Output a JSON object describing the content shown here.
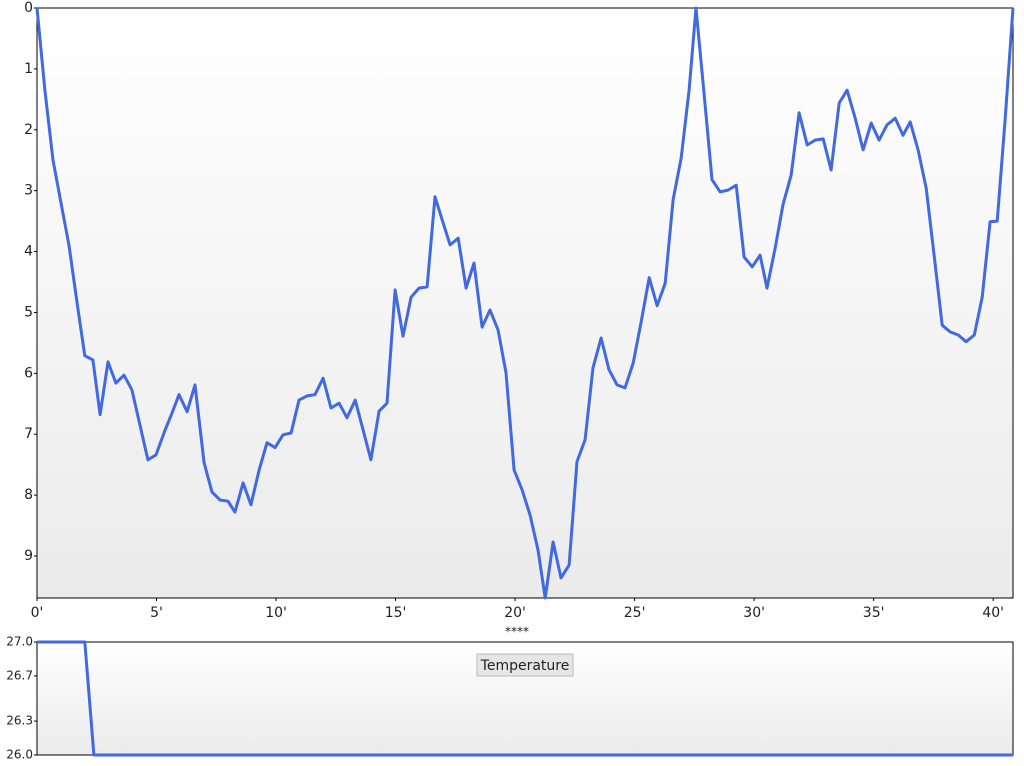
{
  "chart_data": [
    {
      "type": "line",
      "y_inverted": true,
      "grid": false,
      "x": [
        0,
        0.33,
        0.67,
        1.34,
        1.72,
        2.0,
        2.34,
        2.64,
        2.97,
        3.3,
        3.64,
        3.97,
        4.64,
        4.98,
        5.36,
        5.65,
        5.94,
        6.28,
        6.61,
        6.99,
        7.32,
        7.66,
        7.99,
        8.28,
        8.62,
        8.95,
        9.29,
        9.62,
        9.96,
        10.29,
        10.63,
        10.96,
        11.3,
        11.63,
        11.97,
        12.3,
        12.64,
        12.97,
        13.31,
        13.64,
        13.97,
        14.31,
        14.64,
        14.98,
        15.31,
        15.65,
        15.98,
        16.32,
        16.65,
        16.95,
        17.28,
        17.62,
        17.95,
        18.28,
        18.62,
        18.95,
        19.29,
        19.62,
        19.96,
        20.29,
        20.63,
        20.96,
        21.26,
        21.59,
        21.92,
        22.26,
        22.59,
        22.93,
        23.26,
        23.6,
        23.93,
        24.27,
        24.6,
        24.94,
        25.27,
        25.61,
        25.94,
        26.28,
        26.61,
        26.95,
        27.28,
        27.57,
        27.91,
        28.24,
        28.58,
        28.91,
        29.25,
        29.58,
        29.92,
        30.25,
        30.54,
        30.88,
        31.21,
        31.55,
        31.88,
        32.22,
        32.55,
        32.89,
        33.22,
        33.56,
        33.89,
        34.23,
        34.56,
        34.9,
        35.23,
        35.56,
        35.9,
        36.23,
        36.53,
        36.86,
        37.2,
        37.53,
        37.87,
        38.2,
        38.54,
        38.87,
        39.21,
        39.54,
        39.87,
        40.17,
        40.5,
        40.83
      ],
      "series": [
        {
          "color": "#4169e1",
          "values": [
            0,
            1.35,
            2.5,
            3.9,
            4.96,
            5.71,
            5.78,
            6.68,
            5.81,
            6.16,
            6.03,
            6.27,
            7.42,
            7.34,
            6.93,
            6.65,
            6.35,
            6.63,
            6.19,
            7.47,
            7.95,
            8.08,
            8.1,
            8.28,
            7.8,
            8.16,
            7.59,
            7.14,
            7.22,
            7.01,
            6.98,
            6.44,
            6.37,
            6.35,
            6.08,
            6.57,
            6.49,
            6.73,
            6.44,
            6.93,
            7.42,
            6.62,
            6.49,
            4.63,
            5.39,
            4.75,
            4.6,
            4.58,
            3.1,
            3.48,
            3.89,
            3.78,
            4.6,
            4.19,
            5.24,
            4.96,
            5.29,
            5.99,
            7.59,
            7.91,
            8.33,
            8.9,
            9.69,
            8.77,
            9.36,
            9.15,
            7.45,
            7.09,
            5.91,
            5.42,
            5.94,
            6.19,
            6.24,
            5.83,
            5.16,
            4.43,
            4.89,
            4.52,
            3.15,
            2.46,
            1.35,
            0,
            1.43,
            2.82,
            3.02,
            2.99,
            2.91,
            4.09,
            4.25,
            4.06,
            4.6,
            3.94,
            3.23,
            2.74,
            1.72,
            2.25,
            2.17,
            2.15,
            2.66,
            1.56,
            1.35,
            1.81,
            2.33,
            1.89,
            2.17,
            1.92,
            1.81,
            2.09,
            1.87,
            2.33,
            2.96,
            4.06,
            5.21,
            5.32,
            5.37,
            5.48,
            5.37,
            4.75,
            3.51,
            3.5,
            1.84,
            0
          ]
        }
      ],
      "xlim": [
        0,
        40.83
      ],
      "xticks": [
        {
          "value": 0,
          "label": "0'"
        },
        {
          "value": 5,
          "label": "5'"
        },
        {
          "value": 10,
          "label": "10'"
        },
        {
          "value": 15,
          "label": "15'"
        },
        {
          "value": 20,
          "label": "20'"
        },
        {
          "value": 25,
          "label": "25'"
        },
        {
          "value": 30,
          "label": "30'"
        },
        {
          "value": 35,
          "label": "35'"
        },
        {
          "value": 40,
          "label": "40'"
        }
      ],
      "ylim": [
        0,
        9.69
      ],
      "yticks": [
        0,
        1,
        2,
        3,
        4,
        5,
        6,
        7,
        8,
        9
      ]
    },
    {
      "type": "line",
      "y_inverted": false,
      "grid": false,
      "title": "Temperature",
      "x": [
        0,
        2.0,
        2.38,
        40.83
      ],
      "series": [
        {
          "color": "#4169e1",
          "values": [
            27.0,
            27.0,
            26.0,
            26.0
          ]
        }
      ],
      "xlim": [
        0,
        40.83
      ],
      "ylim": [
        26.0,
        27.0
      ],
      "yticks": [
        {
          "value": 27.0,
          "label": "27.0"
        },
        {
          "value": 26.7,
          "label": "26.7"
        },
        {
          "value": 26.3,
          "label": "26.3"
        },
        {
          "value": 26.0,
          "label": "26.0"
        }
      ]
    }
  ],
  "splitter": "****"
}
